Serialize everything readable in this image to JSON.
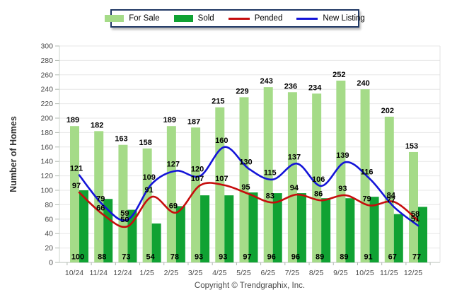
{
  "legend": {
    "border_color": "#203864",
    "items": [
      {
        "label": "For Sale",
        "swatch": "rect",
        "color": "#A5DB88"
      },
      {
        "label": "Sold",
        "swatch": "rect",
        "color": "#10A233"
      },
      {
        "label": "Pended",
        "swatch": "line",
        "color": "#C60D0D"
      },
      {
        "label": "New Listing",
        "swatch": "line",
        "color": "#1414D8"
      }
    ]
  },
  "chart_data": {
    "type": "combo",
    "title": "",
    "categories": [
      "10/24",
      "11/24",
      "12/24",
      "1/25",
      "2/25",
      "3/25",
      "4/25",
      "5/25",
      "6/25",
      "7/25",
      "8/25",
      "9/25",
      "10/25",
      "11/25",
      "12/25"
    ],
    "series": [
      {
        "name": "For Sale",
        "type": "bar",
        "color": "#A5DB88",
        "values": [
          189,
          182,
          163,
          158,
          189,
          187,
          215,
          229,
          243,
          236,
          234,
          252,
          240,
          202,
          153
        ]
      },
      {
        "name": "Sold",
        "type": "bar",
        "color": "#10A233",
        "values": [
          100,
          88,
          73,
          54,
          78,
          93,
          93,
          97,
          96,
          96,
          89,
          89,
          91,
          67,
          77
        ]
      },
      {
        "name": "Pended",
        "type": "line",
        "color": "#C60D0D",
        "values": [
          97,
          66,
          50,
          91,
          69,
          107,
          107,
          95,
          83,
          94,
          86,
          93,
          79,
          84,
          58
        ]
      },
      {
        "name": "New Listing",
        "type": "line",
        "color": "#1414D8",
        "values": [
          121,
          79,
          59,
          109,
          127,
          120,
          160,
          130,
          115,
          137,
          106,
          139,
          116,
          77,
          51
        ]
      }
    ],
    "xlabel": "",
    "ylabel": "Number of Homes",
    "ylim": [
      0,
      300
    ],
    "ytick_step": 20,
    "yticks": [
      0,
      20,
      40,
      60,
      80,
      100,
      120,
      140,
      160,
      180,
      200,
      220,
      240,
      260,
      280,
      300
    ],
    "grid": true,
    "legend_position": "top"
  },
  "footer": {
    "copyright": "Copyright © Trendgraphix, Inc."
  }
}
